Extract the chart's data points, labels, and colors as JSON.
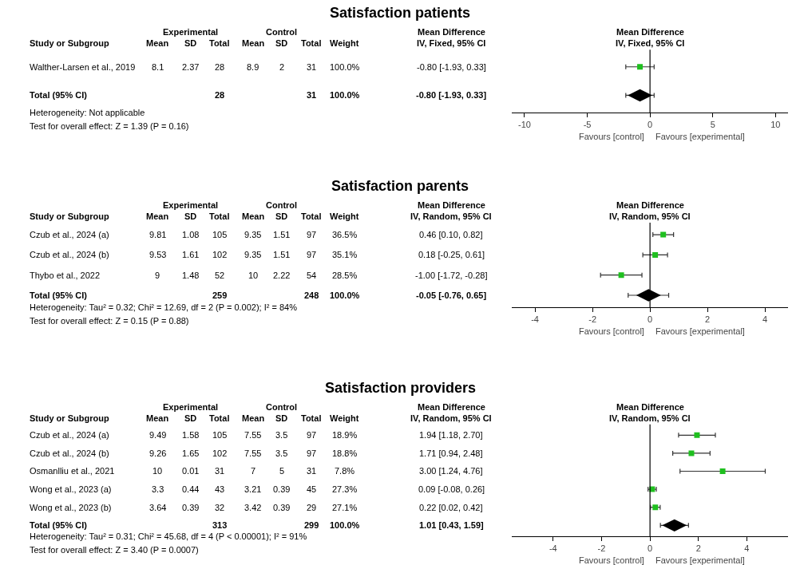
{
  "chart_data": [
    {
      "type": "scatter",
      "orientation": "horizontal",
      "title": "Satisfaction patients",
      "categories": [
        "Walther-Larsen et al., 2019",
        "Total (95% CI)"
      ],
      "series": [
        {
          "color": "#1fbf1f",
          "marker": "square",
          "values": [
            -0.8,
            null
          ],
          "errors": [
            [
              -1.93,
              0.33
            ],
            null
          ]
        },
        {
          "color": "#000000",
          "marker": "diamond",
          "values": [
            null,
            -0.8
          ],
          "errors": [
            null,
            [
              -1.93,
              0.33
            ]
          ]
        }
      ],
      "xlim": [
        -11,
        11
      ],
      "xticks": [
        -10,
        -5,
        0,
        5,
        10
      ],
      "tick_labels": "x",
      "ref_lines": [
        {
          "axis": "x",
          "value": 0,
          "color": "#000000"
        }
      ],
      "annotations": [
        "\t\tExperimental\t\t\tControl\t\t\tMean Difference\tMean Difference",
        "Study or Subgroup\tMean\tSD\tTotal\tMean\tSD\tTotal\tWeight\tIV, Fixed, 95% CI\tIV, Fixed, 95% CI",
        "8.1\t2.37\t28\t8.9\t2\t31\t100.0%\t-0.80 [-1.93, 0.33]",
        "\t\t28\t\t\t31\t100.0%\t-0.80 [-1.93, 0.33]",
        "Heterogeneity: Not applicable",
        "Test for overall effect: Z = 1.39 (P = 0.16)",
        "Favours [control]",
        "Favours [experimental]"
      ]
    },
    {
      "type": "scatter",
      "orientation": "horizontal",
      "title": "Satisfaction parents",
      "categories": [
        "Czub et al., 2024 (a)",
        "Czub et al., 2024 (b)",
        "Thybo et al., 2022",
        "Total (95% CI)"
      ],
      "series": [
        {
          "color": "#1fbf1f",
          "marker": "square",
          "values": [
            0.46,
            0.18,
            -1.0,
            null
          ],
          "errors": [
            [
              0.1,
              0.82
            ],
            [
              -0.25,
              0.61
            ],
            [
              -1.72,
              -0.28
            ],
            null
          ]
        },
        {
          "color": "#000000",
          "marker": "diamond",
          "values": [
            null,
            null,
            null,
            -0.05
          ],
          "errors": [
            null,
            null,
            null,
            [
              -0.76,
              0.65
            ]
          ]
        }
      ],
      "xlim": [
        -4.8,
        4.8
      ],
      "xticks": [
        -4,
        -2,
        0,
        2,
        4
      ],
      "tick_labels": "x",
      "ref_lines": [
        {
          "axis": "x",
          "value": 0,
          "color": "#000000"
        }
      ],
      "annotations": [
        "\t\tExperimental\t\t\tControl\t\t\tMean Difference\tMean Difference",
        "Study or Subgroup\tMean\tSD\tTotal\tMean\tSD\tTotal\tWeight\tIV, Random, 95% CI\tIV, Random, 95% CI",
        "9.81\t1.08\t105\t9.35\t1.51\t97\t36.5%\t0.46 [0.10, 0.82]",
        "9.53\t1.61\t102\t9.35\t1.51\t97\t35.1%\t0.18 [-0.25, 0.61]",
        "9\t1.48\t52\t10\t2.22\t54\t28.5%\t-1.00 [-1.72, -0.28]",
        "\t\t259\t\t\t248\t100.0%\t-0.05 [-0.76, 0.65]",
        "Heterogeneity: Tau² = 0.32; Chi² = 12.69, df = 2 (P = 0.002); I² = 84%",
        "Test for overall effect: Z = 0.15 (P = 0.88)",
        "Favours [control]",
        "Favours [experimental]"
      ]
    },
    {
      "type": "scatter",
      "orientation": "horizontal",
      "title": "Satisfaction providers",
      "categories": [
        "Czub et al., 2024 (a)",
        "Czub et al., 2024 (b)",
        "Osmanlliu et al., 2021",
        "Wong et al., 2023 (a)",
        "Wong et al., 2023 (b)",
        "Total (95% CI)"
      ],
      "series": [
        {
          "color": "#1fbf1f",
          "marker": "square",
          "values": [
            1.94,
            1.71,
            3.0,
            0.09,
            0.22,
            null
          ],
          "errors": [
            [
              1.18,
              2.7
            ],
            [
              0.94,
              2.48
            ],
            [
              1.24,
              4.76
            ],
            [
              -0.08,
              0.26
            ],
            [
              0.02,
              0.42
            ],
            null
          ]
        },
        {
          "color": "#000000",
          "marker": "diamond",
          "values": [
            null,
            null,
            null,
            null,
            null,
            1.01
          ],
          "errors": [
            null,
            null,
            null,
            null,
            null,
            [
              0.43,
              1.59
            ]
          ]
        }
      ],
      "xlim": [
        -5.7,
        5.7
      ],
      "xticks": [
        -4,
        -2,
        0,
        2,
        4
      ],
      "tick_labels": "x",
      "ref_lines": [
        {
          "axis": "x",
          "value": 0,
          "color": "#000000"
        }
      ],
      "annotations": [
        "\t\tExperimental\t\t\tControl\t\t\tMean Difference\tMean Difference",
        "Study or Subgroup\tMean\tSD\tTotal\tMean\tSD\tTotal\tWeight\tIV, Random, 95% CI\tIV, Random, 95% CI",
        "9.49\t1.58\t105\t7.55\t3.5\t97\t18.9%\t1.94 [1.18, 2.70]",
        "9.26\t1.65\t102\t7.55\t3.5\t97\t18.8%\t1.71 [0.94, 2.48]",
        "10\t0.01\t31\t7\t5\t31\t7.8%\t3.00 [1.24, 4.76]",
        "3.3\t0.44\t43\t3.21\t0.39\t45\t27.3%\t0.09 [-0.08, 0.26]",
        "3.64\t0.39\t32\t3.42\t0.39\t29\t27.1%\t0.22 [0.02, 0.42]",
        "\t\t313\t\t\t299\t100.0%\t1.01 [0.43, 1.59]",
        "Heterogeneity: Tau² = 0.31; Chi² = 45.68, df = 4 (P < 0.00001); I² = 91%",
        "Test for overall effect: Z = 3.40 (P = 0.0007)",
        "Favours [control]",
        "Favours [experimental]"
      ]
    }
  ]
}
